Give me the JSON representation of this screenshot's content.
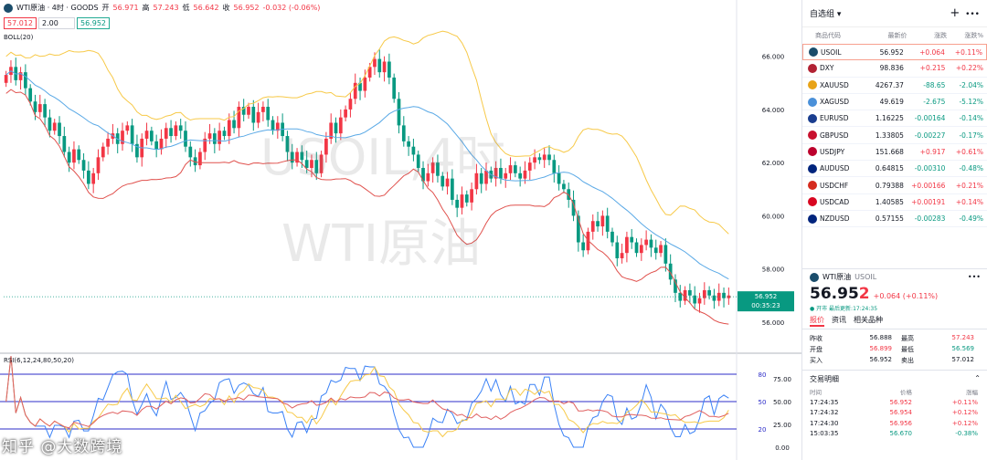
{
  "header": {
    "symbol": "WTI原油 · 4时 · GOODS",
    "open_label": "开",
    "open": "56.971",
    "high_label": "高",
    "high": "57.243",
    "low_label": "低",
    "low": "56.642",
    "close_label": "收",
    "close": "56.952",
    "change": "-0.032 (-0.06%)",
    "sell_price": "57.012",
    "spread": "2.00",
    "buy_price": "56.952"
  },
  "indicator_labels": {
    "boll": "BOLL(20)",
    "rsi": "RSI(6,12,24,80,50,20)"
  },
  "watermark": {
    "line1": "USOIL,4时",
    "line2": "WTI原油"
  },
  "brand": "知乎 @大数跨境",
  "price_axis": {
    "ticks": [
      "66.000",
      "64.000",
      "62.000",
      "60.000",
      "58.000",
      "56.000"
    ],
    "current": "56.952",
    "countdown": "00:35:23"
  },
  "rsi_axis": {
    "ticks": [
      "75.00",
      "50.00",
      "25.00",
      "0.00"
    ],
    "levels": [
      "80",
      "50",
      "20"
    ]
  },
  "chart_data": {
    "type": "candlestick",
    "price_range": [
      55.0,
      67.5
    ],
    "rsi_range": [
      0,
      90
    ],
    "rsi_levels": [
      80,
      50,
      20
    ],
    "last_price": 56.952,
    "close_series": [
      65.3,
      65.6,
      65.1,
      65.4,
      64.8,
      64.3,
      63.9,
      64.2,
      63.7,
      63.2,
      63.5,
      63.0,
      62.4,
      62.0,
      62.5,
      62.1,
      61.7,
      61.2,
      61.6,
      62.2,
      62.6,
      62.9,
      63.1,
      62.7,
      63.2,
      63.4,
      62.7,
      62.2,
      62.9,
      63.2,
      62.8,
      62.5,
      62.9,
      63.3,
      63.0,
      63.4,
      63.2,
      62.6,
      62.2,
      61.9,
      62.4,
      62.9,
      63.1,
      62.7,
      63.2,
      63.0,
      63.6,
      63.3,
      64.1,
      63.8,
      64.1,
      63.5,
      63.9,
      64.1,
      63.6,
      63.2,
      63.5,
      63.0,
      62.4,
      62.0,
      62.4,
      62.1,
      61.8,
      62.1,
      61.6,
      62.3,
      62.9,
      63.5,
      63.1,
      63.7,
      64.0,
      64.4,
      65.0,
      64.7,
      65.2,
      65.6,
      65.9,
      65.4,
      65.8,
      65.2,
      64.4,
      63.4,
      62.8,
      62.6,
      62.3,
      61.8,
      61.3,
      61.6,
      62.0,
      61.5,
      61.1,
      61.4,
      60.6,
      60.3,
      60.8,
      60.5,
      61.0,
      61.6,
      61.2,
      61.7,
      61.4,
      61.8,
      61.4,
      61.6,
      61.9,
      61.6,
      61.4,
      61.7,
      62.0,
      62.2,
      62.1,
      62.3,
      62.1,
      61.6,
      61.2,
      61.0,
      60.6,
      60.0,
      59.0,
      58.7,
      59.4,
      59.8,
      59.6,
      60.0,
      59.4,
      59.0,
      58.4,
      58.6,
      59.2,
      59.0,
      58.6,
      58.9,
      59.1,
      58.8,
      58.6,
      58.9,
      58.2,
      57.6,
      57.1,
      56.8,
      57.2,
      57.0,
      56.7,
      56.9,
      57.2,
      57.0,
      56.8,
      57.1,
      56.9,
      57.0
    ],
    "rsi_series_note": "three RSI lines (6, 12, 24)"
  },
  "watchlist": {
    "title": "自选组",
    "columns": [
      "商品代码",
      "最新价",
      "涨跌",
      "涨跌%"
    ],
    "rows": [
      {
        "sym": "USOIL",
        "last": "56.952",
        "chg": "+0.064",
        "pct": "+0.11%",
        "dir": "up",
        "color": "#1b4d6b"
      },
      {
        "sym": "DXY",
        "last": "98.836",
        "chg": "+0.215",
        "pct": "+0.22%",
        "dir": "up",
        "color": "#b22234"
      },
      {
        "sym": "XAUUSD",
        "last": "4267.37",
        "chg": "-88.65",
        "pct": "-2.04%",
        "dir": "dn",
        "color": "#e8a317"
      },
      {
        "sym": "XAGUSD",
        "last": "49.619",
        "chg": "-2.675",
        "pct": "-5.12%",
        "dir": "dn",
        "color": "#4a90d9"
      },
      {
        "sym": "EURUSD",
        "last": "1.16225",
        "chg": "-0.00164",
        "pct": "-0.14%",
        "dir": "dn",
        "color": "#1a3d8f"
      },
      {
        "sym": "GBPUSD",
        "last": "1.33805",
        "chg": "-0.00227",
        "pct": "-0.17%",
        "dir": "dn",
        "color": "#c8102e"
      },
      {
        "sym": "USDJPY",
        "last": "151.668",
        "chg": "+0.917",
        "pct": "+0.61%",
        "dir": "up",
        "color": "#bc002d"
      },
      {
        "sym": "AUDUSD",
        "last": "0.64815",
        "chg": "-0.00310",
        "pct": "-0.48%",
        "dir": "dn",
        "color": "#00247d"
      },
      {
        "sym": "USDCHF",
        "last": "0.79388",
        "chg": "+0.00166",
        "pct": "+0.21%",
        "dir": "up",
        "color": "#d52b1e"
      },
      {
        "sym": "USDCAD",
        "last": "1.40585",
        "chg": "+0.00191",
        "pct": "+0.14%",
        "dir": "up",
        "color": "#d80621"
      },
      {
        "sym": "NZDUSD",
        "last": "0.57155",
        "chg": "-0.00283",
        "pct": "-0.49%",
        "dir": "dn",
        "color": "#00247d"
      }
    ]
  },
  "detail": {
    "name": "WTI原油",
    "code": "USOIL",
    "price_main": "56.95",
    "price_last_digit": "2",
    "change": "+0.064 (+0.11%)",
    "status": "● 开市  最后更新:17:24:35",
    "tabs": [
      "报价",
      "资讯",
      "相关品种"
    ],
    "stats": [
      [
        "昨收",
        "56.888",
        "最高",
        "57.243"
      ],
      [
        "开盘",
        "56.899",
        "最低",
        "56.569"
      ],
      [
        "买入",
        "56.952",
        "卖出",
        "57.012"
      ]
    ],
    "trades_title": "交易明细",
    "trade_cols": [
      "时间",
      "价格",
      "涨幅"
    ],
    "trades": [
      [
        "17:24:35",
        "56.952",
        "+0.11%",
        "up"
      ],
      [
        "17:24:32",
        "56.954",
        "+0.12%",
        "up"
      ],
      [
        "17:24:30",
        "56.956",
        "+0.12%",
        "up"
      ],
      [
        "15:03:35",
        "56.670",
        "-0.38%",
        "dn"
      ]
    ]
  }
}
